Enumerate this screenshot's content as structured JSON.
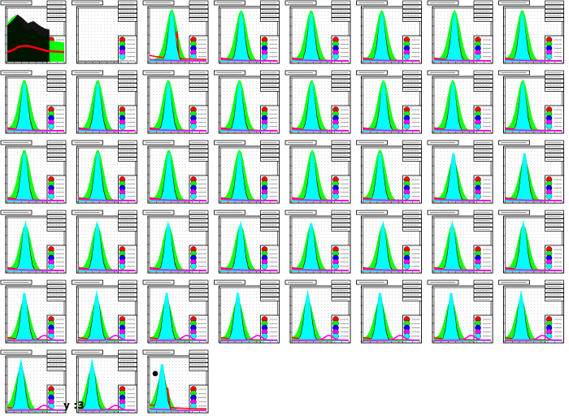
{
  "chart_data": {
    "type": "line",
    "grid": {
      "rows": 6,
      "cols": 8,
      "count": 43
    },
    "series": [
      {
        "color": "#000000"
      },
      {
        "color": "#ff0000"
      },
      {
        "color": "#00ff00"
      },
      {
        "color": "#0000ff"
      },
      {
        "color": "#ff00ff"
      },
      {
        "color": "#00ffff"
      }
    ],
    "legend_marker_colors": [
      "#ff0000",
      "#00ff00",
      "#0000ff",
      "#ff00ff",
      "#00ffff"
    ],
    "x": [
      0.0,
      0.04,
      0.08,
      0.12,
      0.16,
      0.2,
      0.24,
      0.28,
      0.32,
      0.36,
      0.4,
      0.44,
      0.48,
      0.52,
      0.56,
      0.6,
      0.64,
      0.68,
      0.72,
      0.76,
      0.8,
      0.84,
      0.88,
      0.92,
      0.96,
      1.0
    ],
    "panels": [
      {
        "kind": "special_first"
      },
      {
        "kind": "empty"
      },
      {
        "kind": "peak",
        "peak_x": 0.39,
        "peak_y": 0.97,
        "green_mult": 1.0,
        "red_spike": true
      },
      {
        "kind": "peak",
        "peak_x": 0.36,
        "peak_y": 0.95,
        "green_mult": 1.0
      },
      {
        "kind": "peak",
        "peak_x": 0.34,
        "peak_y": 0.95,
        "green_mult": 1.0
      },
      {
        "kind": "peak",
        "peak_x": 0.33,
        "peak_y": 0.95,
        "green_mult": 1.0
      },
      {
        "kind": "peak",
        "peak_x": 0.36,
        "peak_y": 0.95,
        "green_mult": 1.0
      },
      {
        "kind": "peak",
        "peak_x": 0.3,
        "peak_y": 0.95,
        "green_mult": 1.0
      },
      {
        "kind": "peak",
        "peak_x": 0.3,
        "peak_y": 0.95,
        "green_mult": 1.0
      },
      {
        "kind": "peak",
        "peak_x": 0.34,
        "peak_y": 0.95,
        "green_mult": 1.0
      },
      {
        "kind": "peak",
        "peak_x": 0.33,
        "peak_y": 0.95,
        "green_mult": 1.0
      },
      {
        "kind": "peak",
        "peak_x": 0.33,
        "peak_y": 0.95,
        "green_mult": 1.0
      },
      {
        "kind": "peak",
        "peak_x": 0.35,
        "peak_y": 0.95,
        "green_mult": 1.0
      },
      {
        "kind": "peak",
        "peak_x": 0.36,
        "peak_y": 0.95,
        "green_mult": 1.0
      },
      {
        "kind": "peak",
        "peak_x": 0.33,
        "peak_y": 0.95,
        "green_mult": 1.0
      },
      {
        "kind": "peak",
        "peak_x": 0.31,
        "peak_y": 0.95,
        "green_mult": 1.0
      },
      {
        "kind": "peak",
        "peak_x": 0.3,
        "peak_y": 0.95,
        "green_mult": 1.0
      },
      {
        "kind": "peak",
        "peak_x": 0.34,
        "peak_y": 0.95,
        "green_mult": 1.0
      },
      {
        "kind": "peak",
        "peak_x": 0.34,
        "peak_y": 0.95,
        "green_mult": 1.0
      },
      {
        "kind": "peak",
        "peak_x": 0.33,
        "peak_y": 0.95,
        "green_mult": 1.0
      },
      {
        "kind": "peak",
        "peak_x": 0.36,
        "peak_y": 0.95,
        "green_mult": 1.0
      },
      {
        "kind": "peak",
        "peak_x": 0.3,
        "peak_y": 0.95,
        "green_mult": 1.0
      },
      {
        "kind": "peak",
        "peak_x": 0.34,
        "peak_y": 0.95,
        "green_mult": 0.8
      },
      {
        "kind": "peak",
        "peak_x": 0.34,
        "peak_y": 0.95,
        "green_mult": 0.8
      },
      {
        "kind": "peak",
        "peak_x": 0.32,
        "peak_y": 0.95,
        "green_mult": 0.9
      },
      {
        "kind": "peak",
        "peak_x": 0.33,
        "peak_y": 0.95,
        "green_mult": 0.9
      },
      {
        "kind": "peak",
        "peak_x": 0.33,
        "peak_y": 0.95,
        "green_mult": 0.9
      },
      {
        "kind": "peak",
        "peak_x": 0.35,
        "peak_y": 0.95,
        "green_mult": 0.9
      },
      {
        "kind": "peak",
        "peak_x": 0.34,
        "peak_y": 0.95,
        "green_mult": 0.9
      },
      {
        "kind": "peak",
        "peak_x": 0.35,
        "peak_y": 0.95,
        "green_mult": 0.9
      },
      {
        "kind": "peak",
        "peak_x": 0.32,
        "peak_y": 0.95,
        "green_mult": 0.9
      },
      {
        "kind": "peak",
        "peak_x": 0.32,
        "peak_y": 0.95,
        "green_mult": 0.9
      },
      {
        "kind": "peak",
        "peak_x": 0.3,
        "peak_y": 0.95,
        "green_mult": 0.8,
        "magenta_tail": true
      },
      {
        "kind": "peak",
        "peak_x": 0.32,
        "peak_y": 0.95,
        "green_mult": 0.8,
        "magenta_tail": true
      },
      {
        "kind": "peak",
        "peak_x": 0.3,
        "peak_y": 0.95,
        "green_mult": 0.8,
        "magenta_tail": true
      },
      {
        "kind": "peak",
        "peak_x": 0.3,
        "peak_y": 0.95,
        "green_mult": 0.8,
        "magenta_tail": true
      },
      {
        "kind": "peak",
        "peak_x": 0.28,
        "peak_y": 0.95,
        "green_mult": 0.8,
        "magenta_tail": true
      },
      {
        "kind": "peak",
        "peak_x": 0.3,
        "peak_y": 0.95,
        "green_mult": 0.8,
        "magenta_tail": true
      },
      {
        "kind": "peak",
        "peak_x": 0.3,
        "peak_y": 0.95,
        "green_mult": 0.8,
        "magenta_tail": true
      },
      {
        "kind": "peak",
        "peak_x": 0.28,
        "peak_y": 0.95,
        "green_mult": 0.8,
        "magenta_tail": true
      },
      {
        "kind": "peak",
        "peak_x": 0.24,
        "peak_y": 0.98,
        "green_mult": 0.8,
        "magenta_tail": true
      },
      {
        "kind": "peak",
        "peak_x": 0.24,
        "peak_y": 0.98,
        "green_mult": 0.8,
        "magenta_tail": true
      },
      {
        "kind": "last_special",
        "peak_x": 0.22,
        "peak_y": 0.92,
        "green_mult": 0.7,
        "red_spike": true,
        "black_dot": true
      }
    ]
  },
  "footer": {
    "text": "y :3"
  }
}
